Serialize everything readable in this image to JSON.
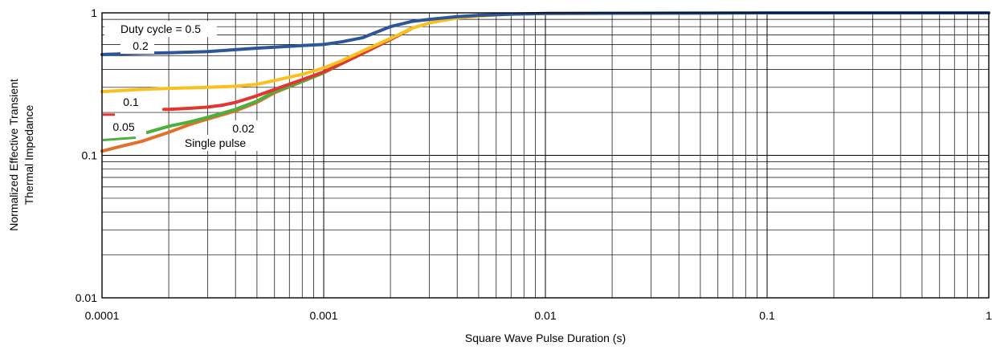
{
  "chart_data": {
    "type": "line",
    "x_scale": "log",
    "y_scale": "log",
    "xlim": [
      0.0001,
      1
    ],
    "ylim": [
      0.01,
      1
    ],
    "grid": true,
    "xlabel": "Square Wave Pulse Duration (s)",
    "ylabel_lines": [
      "Normalized Effective Transient",
      "Thermal Impedance"
    ],
    "x_tick_labels": [
      "0.0001",
      "0.001",
      "0.01",
      "0.1",
      "1"
    ],
    "x_tick_values": [
      0.0001,
      0.001,
      0.01,
      0.1,
      1
    ],
    "y_tick_labels": [
      "0.01",
      "0.1",
      "1"
    ],
    "y_tick_values": [
      0.01,
      0.1,
      1
    ],
    "annotations": [
      "Duty cycle = 0.5",
      "0.2",
      "0.1",
      "0.05",
      "0.02",
      "Single pulse"
    ],
    "series": [
      {
        "name": "Duty cycle = 0.5",
        "color": "#2E5597",
        "x": [
          0.0001,
          0.00015,
          0.0002,
          0.0003,
          0.0005,
          0.0008,
          0.001,
          0.0012,
          0.0015,
          0.002,
          0.0025,
          0.003,
          0.004,
          0.005,
          0.007,
          0.01,
          0.1,
          1
        ],
        "y": [
          0.51,
          0.52,
          0.525,
          0.535,
          0.565,
          0.59,
          0.6,
          0.625,
          0.67,
          0.8,
          0.87,
          0.9,
          0.94,
          0.96,
          0.98,
          0.99,
          1.0,
          1.0
        ]
      },
      {
        "name": "0.2",
        "color": "#F8C11F",
        "x": [
          0.0001,
          0.00015,
          0.0002,
          0.0003,
          0.0004,
          0.0005,
          0.0006,
          0.0008,
          0.001,
          0.0012,
          0.0015,
          0.002,
          0.0025,
          0.003,
          0.004,
          0.005,
          0.007,
          0.01,
          0.1,
          1
        ],
        "y": [
          0.28,
          0.29,
          0.295,
          0.3,
          0.305,
          0.315,
          0.335,
          0.37,
          0.41,
          0.46,
          0.54,
          0.66,
          0.78,
          0.85,
          0.92,
          0.95,
          0.98,
          0.99,
          1.0,
          1.0
        ]
      },
      {
        "name": "0.1",
        "color": "#E33530",
        "x": [
          0.00019,
          0.0002,
          0.00025,
          0.0003,
          0.00035,
          0.0004,
          0.0005,
          0.0006,
          0.0008,
          0.001,
          0.0012,
          0.0015,
          0.002,
          0.0025
        ],
        "y": [
          0.21,
          0.21,
          0.214,
          0.218,
          0.225,
          0.235,
          0.262,
          0.29,
          0.34,
          0.385,
          0.44,
          0.52,
          0.65,
          0.78
        ]
      },
      {
        "name": "0.05",
        "color": "#4DAF3F",
        "x": [
          0.00016,
          0.0002,
          0.00025,
          0.0003,
          0.0004,
          0.0005,
          0.0006,
          0.0008,
          0.001,
          0.0012,
          0.0015,
          0.002,
          0.0025
        ],
        "y": [
          0.145,
          0.16,
          0.172,
          0.185,
          0.21,
          0.24,
          0.28,
          0.33,
          0.38,
          0.44,
          0.52,
          0.65,
          0.78
        ]
      },
      {
        "name": "Single pulse",
        "color": "#E0702B",
        "x": [
          0.0001,
          0.00012,
          0.00015,
          0.0002,
          0.00025,
          0.0003,
          0.0004,
          0.0005,
          0.0006,
          0.0008,
          0.001,
          0.0012,
          0.0015,
          0.002,
          0.0025
        ],
        "y": [
          0.107,
          0.115,
          0.125,
          0.145,
          0.165,
          0.18,
          0.205,
          0.235,
          0.275,
          0.33,
          0.38,
          0.44,
          0.52,
          0.65,
          0.78
        ]
      }
    ]
  }
}
